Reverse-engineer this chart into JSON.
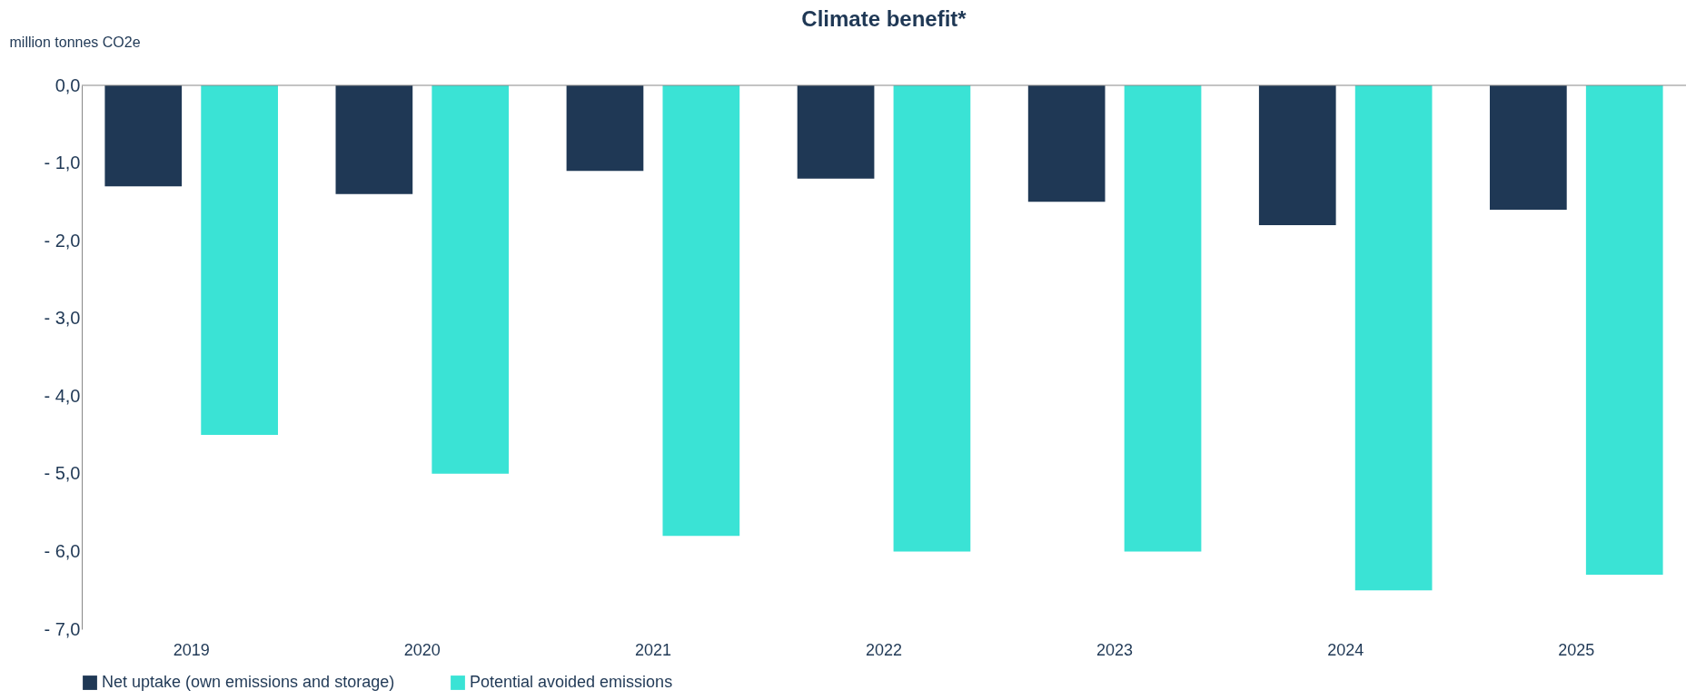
{
  "chart_data": {
    "type": "bar",
    "title": "Climate benefit*",
    "ylabel": "million tonnes CO2e",
    "categories": [
      "2019",
      "2020",
      "2021",
      "2022",
      "2023",
      "2024",
      "2025"
    ],
    "series": [
      {
        "name": "Net uptake (own emissions and storage)",
        "color": "#1f3855",
        "values": [
          -1.3,
          -1.4,
          -1.1,
          -1.2,
          -1.5,
          -1.8,
          -1.6
        ]
      },
      {
        "name": "Potential avoided emissions",
        "color": "#3ae3d5",
        "values": [
          -4.5,
          -5.0,
          -5.8,
          -6.0,
          -6.0,
          -6.5,
          -6.3
        ]
      }
    ],
    "ylim": [
      -7,
      0
    ],
    "yticks": [
      {
        "value": 0,
        "label": "0,0"
      },
      {
        "value": -1,
        "label": "- 1,0"
      },
      {
        "value": -2,
        "label": "- 2,0"
      },
      {
        "value": -3,
        "label": "- 3,0"
      },
      {
        "value": -4,
        "label": "- 4,0"
      },
      {
        "value": -5,
        "label": "- 5,0"
      },
      {
        "value": -6,
        "label": "- 6,0"
      },
      {
        "value": -7,
        "label": "- 7,0"
      }
    ],
    "grid": false,
    "legend": "bottom"
  }
}
